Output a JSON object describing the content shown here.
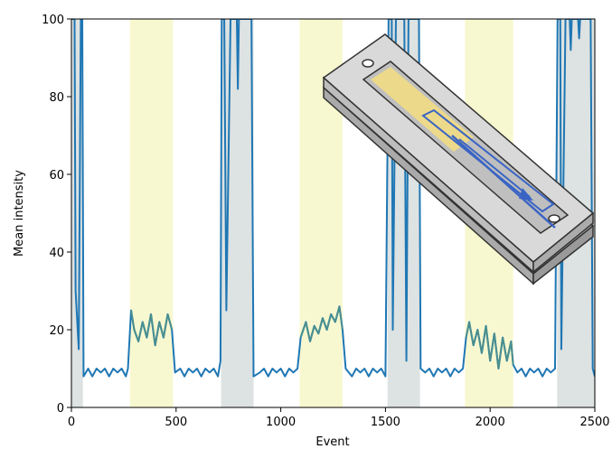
{
  "chart_data": {
    "type": "line",
    "title": "",
    "xlabel": "Event",
    "ylabel": "Mean intensity",
    "xlim": [
      0,
      2500
    ],
    "ylim": [
      0,
      100
    ],
    "x_ticks": [
      0,
      500,
      1000,
      1500,
      2000,
      2500
    ],
    "y_ticks": [
      0,
      20,
      40,
      60,
      80,
      100
    ],
    "grid": false,
    "line_color": "#1f77b4",
    "highlight_color": "#4a8f8f",
    "shaded_regions": [
      {
        "kind": "gray",
        "x": [
          0,
          55
        ],
        "color": "#dde2e2"
      },
      {
        "kind": "yellow",
        "x": [
          280,
          485
        ],
        "color": "#f8f8d0"
      },
      {
        "kind": "gray",
        "x": [
          715,
          870
        ],
        "color": "#dde2e2"
      },
      {
        "kind": "yellow",
        "x": [
          1090,
          1295
        ],
        "color": "#f8f8d0"
      },
      {
        "kind": "gray",
        "x": [
          1510,
          1665
        ],
        "color": "#dde2e2"
      },
      {
        "kind": "yellow",
        "x": [
          1880,
          2110
        ],
        "color": "#f8f8d0"
      },
      {
        "kind": "gray",
        "x": [
          2320,
          2500
        ],
        "color": "#dde2e2"
      }
    ],
    "series": [
      {
        "points": [
          [
            0,
            100
          ],
          [
            15,
            100
          ],
          [
            20,
            30
          ],
          [
            35,
            15
          ],
          [
            45,
            100
          ],
          [
            52,
            100
          ],
          [
            58,
            8
          ],
          [
            80,
            10
          ],
          [
            100,
            8
          ],
          [
            120,
            10
          ],
          [
            140,
            9
          ],
          [
            160,
            10
          ],
          [
            180,
            8
          ],
          [
            200,
            10
          ],
          [
            220,
            9
          ],
          [
            240,
            10
          ],
          [
            260,
            8
          ],
          [
            270,
            10
          ],
          [
            285,
            25
          ],
          [
            300,
            20
          ],
          [
            320,
            17
          ],
          [
            340,
            22
          ],
          [
            360,
            18
          ],
          [
            380,
            24
          ],
          [
            400,
            16
          ],
          [
            420,
            22
          ],
          [
            440,
            18
          ],
          [
            460,
            24
          ],
          [
            480,
            20
          ],
          [
            495,
            9
          ],
          [
            520,
            10
          ],
          [
            540,
            8
          ],
          [
            560,
            10
          ],
          [
            580,
            9
          ],
          [
            600,
            10
          ],
          [
            620,
            8
          ],
          [
            640,
            10
          ],
          [
            660,
            9
          ],
          [
            680,
            10
          ],
          [
            700,
            8
          ],
          [
            712,
            12
          ],
          [
            718,
            100
          ],
          [
            730,
            100
          ],
          [
            740,
            25
          ],
          [
            760,
            100
          ],
          [
            790,
            100
          ],
          [
            795,
            82
          ],
          [
            800,
            100
          ],
          [
            860,
            100
          ],
          [
            870,
            8
          ],
          [
            900,
            9
          ],
          [
            920,
            10
          ],
          [
            940,
            8
          ],
          [
            960,
            10
          ],
          [
            980,
            9
          ],
          [
            1000,
            10
          ],
          [
            1020,
            8
          ],
          [
            1040,
            10
          ],
          [
            1060,
            9
          ],
          [
            1080,
            10
          ],
          [
            1095,
            18
          ],
          [
            1120,
            22
          ],
          [
            1140,
            17
          ],
          [
            1160,
            21
          ],
          [
            1180,
            19
          ],
          [
            1200,
            23
          ],
          [
            1220,
            20
          ],
          [
            1240,
            24
          ],
          [
            1260,
            22
          ],
          [
            1280,
            26
          ],
          [
            1295,
            20
          ],
          [
            1310,
            10
          ],
          [
            1340,
            8
          ],
          [
            1360,
            10
          ],
          [
            1380,
            9
          ],
          [
            1400,
            10
          ],
          [
            1420,
            8
          ],
          [
            1440,
            10
          ],
          [
            1460,
            9
          ],
          [
            1480,
            10
          ],
          [
            1500,
            8
          ],
          [
            1515,
            100
          ],
          [
            1530,
            100
          ],
          [
            1535,
            20
          ],
          [
            1550,
            100
          ],
          [
            1590,
            100
          ],
          [
            1600,
            12
          ],
          [
            1610,
            100
          ],
          [
            1660,
            100
          ],
          [
            1668,
            10
          ],
          [
            1690,
            9
          ],
          [
            1710,
            10
          ],
          [
            1730,
            8
          ],
          [
            1750,
            10
          ],
          [
            1770,
            9
          ],
          [
            1790,
            10
          ],
          [
            1810,
            8
          ],
          [
            1830,
            10
          ],
          [
            1850,
            9
          ],
          [
            1870,
            10
          ],
          [
            1885,
            18
          ],
          [
            1900,
            22
          ],
          [
            1920,
            16
          ],
          [
            1940,
            20
          ],
          [
            1960,
            14
          ],
          [
            1980,
            21
          ],
          [
            2000,
            12
          ],
          [
            2020,
            19
          ],
          [
            2040,
            10
          ],
          [
            2060,
            18
          ],
          [
            2080,
            12
          ],
          [
            2100,
            17
          ],
          [
            2110,
            11
          ],
          [
            2130,
            9
          ],
          [
            2150,
            10
          ],
          [
            2170,
            8
          ],
          [
            2190,
            10
          ],
          [
            2210,
            9
          ],
          [
            2230,
            10
          ],
          [
            2250,
            8
          ],
          [
            2270,
            10
          ],
          [
            2290,
            9
          ],
          [
            2310,
            10
          ],
          [
            2322,
            100
          ],
          [
            2335,
            100
          ],
          [
            2340,
            15
          ],
          [
            2360,
            100
          ],
          [
            2380,
            100
          ],
          [
            2385,
            92
          ],
          [
            2390,
            100
          ],
          [
            2420,
            100
          ],
          [
            2425,
            95
          ],
          [
            2430,
            100
          ],
          [
            2480,
            100
          ],
          [
            2490,
            10
          ],
          [
            2500,
            8
          ]
        ]
      }
    ]
  }
}
